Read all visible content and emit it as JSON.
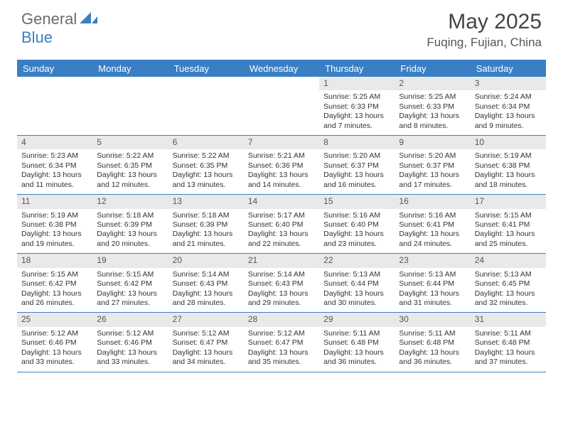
{
  "brand": {
    "part1": "General",
    "part2": "Blue"
  },
  "title": "May 2025",
  "location": "Fuqing, Fujian, China",
  "dayNames": [
    "Sunday",
    "Monday",
    "Tuesday",
    "Wednesday",
    "Thursday",
    "Friday",
    "Saturday"
  ],
  "colors": {
    "accent": "#3a7fc4",
    "headerText": "#ffffff",
    "numBg": "#e9e9e9",
    "bodyText": "#333333"
  },
  "weeks": [
    [
      {
        "empty": true
      },
      {
        "empty": true
      },
      {
        "empty": true
      },
      {
        "empty": true
      },
      {
        "n": "1",
        "sunrise": "5:25 AM",
        "sunset": "6:33 PM",
        "daylight": "13 hours and 7 minutes."
      },
      {
        "n": "2",
        "sunrise": "5:25 AM",
        "sunset": "6:33 PM",
        "daylight": "13 hours and 8 minutes."
      },
      {
        "n": "3",
        "sunrise": "5:24 AM",
        "sunset": "6:34 PM",
        "daylight": "13 hours and 9 minutes."
      }
    ],
    [
      {
        "n": "4",
        "sunrise": "5:23 AM",
        "sunset": "6:34 PM",
        "daylight": "13 hours and 11 minutes."
      },
      {
        "n": "5",
        "sunrise": "5:22 AM",
        "sunset": "6:35 PM",
        "daylight": "13 hours and 12 minutes."
      },
      {
        "n": "6",
        "sunrise": "5:22 AM",
        "sunset": "6:35 PM",
        "daylight": "13 hours and 13 minutes."
      },
      {
        "n": "7",
        "sunrise": "5:21 AM",
        "sunset": "6:36 PM",
        "daylight": "13 hours and 14 minutes."
      },
      {
        "n": "8",
        "sunrise": "5:20 AM",
        "sunset": "6:37 PM",
        "daylight": "13 hours and 16 minutes."
      },
      {
        "n": "9",
        "sunrise": "5:20 AM",
        "sunset": "6:37 PM",
        "daylight": "13 hours and 17 minutes."
      },
      {
        "n": "10",
        "sunrise": "5:19 AM",
        "sunset": "6:38 PM",
        "daylight": "13 hours and 18 minutes."
      }
    ],
    [
      {
        "n": "11",
        "sunrise": "5:19 AM",
        "sunset": "6:38 PM",
        "daylight": "13 hours and 19 minutes."
      },
      {
        "n": "12",
        "sunrise": "5:18 AM",
        "sunset": "6:39 PM",
        "daylight": "13 hours and 20 minutes."
      },
      {
        "n": "13",
        "sunrise": "5:18 AM",
        "sunset": "6:39 PM",
        "daylight": "13 hours and 21 minutes."
      },
      {
        "n": "14",
        "sunrise": "5:17 AM",
        "sunset": "6:40 PM",
        "daylight": "13 hours and 22 minutes."
      },
      {
        "n": "15",
        "sunrise": "5:16 AM",
        "sunset": "6:40 PM",
        "daylight": "13 hours and 23 minutes."
      },
      {
        "n": "16",
        "sunrise": "5:16 AM",
        "sunset": "6:41 PM",
        "daylight": "13 hours and 24 minutes."
      },
      {
        "n": "17",
        "sunrise": "5:15 AM",
        "sunset": "6:41 PM",
        "daylight": "13 hours and 25 minutes."
      }
    ],
    [
      {
        "n": "18",
        "sunrise": "5:15 AM",
        "sunset": "6:42 PM",
        "daylight": "13 hours and 26 minutes."
      },
      {
        "n": "19",
        "sunrise": "5:15 AM",
        "sunset": "6:42 PM",
        "daylight": "13 hours and 27 minutes."
      },
      {
        "n": "20",
        "sunrise": "5:14 AM",
        "sunset": "6:43 PM",
        "daylight": "13 hours and 28 minutes."
      },
      {
        "n": "21",
        "sunrise": "5:14 AM",
        "sunset": "6:43 PM",
        "daylight": "13 hours and 29 minutes."
      },
      {
        "n": "22",
        "sunrise": "5:13 AM",
        "sunset": "6:44 PM",
        "daylight": "13 hours and 30 minutes."
      },
      {
        "n": "23",
        "sunrise": "5:13 AM",
        "sunset": "6:44 PM",
        "daylight": "13 hours and 31 minutes."
      },
      {
        "n": "24",
        "sunrise": "5:13 AM",
        "sunset": "6:45 PM",
        "daylight": "13 hours and 32 minutes."
      }
    ],
    [
      {
        "n": "25",
        "sunrise": "5:12 AM",
        "sunset": "6:46 PM",
        "daylight": "13 hours and 33 minutes."
      },
      {
        "n": "26",
        "sunrise": "5:12 AM",
        "sunset": "6:46 PM",
        "daylight": "13 hours and 33 minutes."
      },
      {
        "n": "27",
        "sunrise": "5:12 AM",
        "sunset": "6:47 PM",
        "daylight": "13 hours and 34 minutes."
      },
      {
        "n": "28",
        "sunrise": "5:12 AM",
        "sunset": "6:47 PM",
        "daylight": "13 hours and 35 minutes."
      },
      {
        "n": "29",
        "sunrise": "5:11 AM",
        "sunset": "6:48 PM",
        "daylight": "13 hours and 36 minutes."
      },
      {
        "n": "30",
        "sunrise": "5:11 AM",
        "sunset": "6:48 PM",
        "daylight": "13 hours and 36 minutes."
      },
      {
        "n": "31",
        "sunrise": "5:11 AM",
        "sunset": "6:48 PM",
        "daylight": "13 hours and 37 minutes."
      }
    ]
  ],
  "labels": {
    "sunrise": "Sunrise: ",
    "sunset": "Sunset: ",
    "daylight": "Daylight: "
  }
}
